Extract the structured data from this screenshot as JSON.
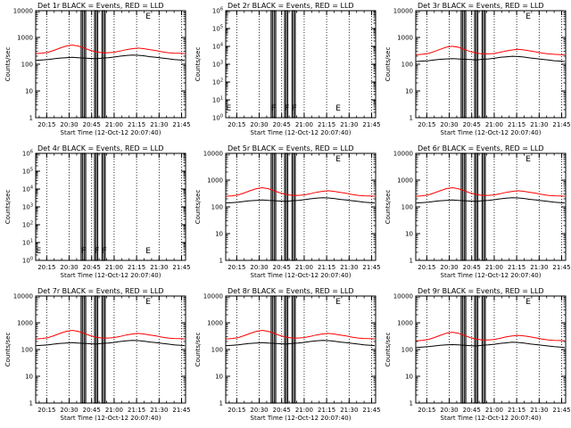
{
  "figure": {
    "colors": {
      "events": "#000000",
      "lld": "#ff0000",
      "background": "#ffffff"
    }
  },
  "chart_data": [
    {
      "type": "line",
      "title": "Det 1r BLACK = Events, RED = LLD",
      "xlabel": "Start Time (12-Oct-12 20:07:40)",
      "ylabel": "Counts/sec",
      "ylog": true,
      "ylim": [
        1,
        10000
      ],
      "yticks": [
        "1",
        "10",
        "100",
        "1000",
        "10000"
      ],
      "xticks": [
        "20:15",
        "20:30",
        "20:45",
        "21:00",
        "21:15",
        "21:30",
        "21:45"
      ],
      "xlim": [
        "20:07:40",
        "21:47:40"
      ],
      "flags": [
        {
          "label": "E",
          "time": "21:21"
        }
      ],
      "has_series": true
    },
    {
      "type": "line",
      "title": "Det 2r BLACK = Events, RED = LLD",
      "xlabel": "Start Time (12-Oct-12 20:07:40)",
      "ylabel": "Counts/sec",
      "ylog": true,
      "ylim": [
        1,
        1000000
      ],
      "yticks": [
        "10^0",
        "10^1",
        "10^2",
        "10^3",
        "10^4",
        "10^5",
        "10^6"
      ],
      "xticks": [
        "20:15",
        "20:30",
        "20:45",
        "21:00",
        "21:15",
        "21:30",
        "21:45"
      ],
      "xlim": [
        "20:07:40",
        "21:47:40"
      ],
      "flags": [
        {
          "label": "E",
          "time": "20:08"
        },
        {
          "label": "F",
          "time": "20:38"
        },
        {
          "label": "F",
          "time": "20:47"
        },
        {
          "label": "F",
          "time": "20:52"
        },
        {
          "label": "E",
          "time": "21:21"
        }
      ],
      "has_series": false
    },
    {
      "type": "line",
      "title": "Det 3r BLACK = Events, RED = LLD",
      "xlabel": "Start Time (12-Oct-12 20:07:40)",
      "ylabel": "Counts/sec",
      "ylog": true,
      "ylim": [
        1,
        10000
      ],
      "yticks": [
        "1",
        "10",
        "100",
        "1000",
        "10000"
      ],
      "xticks": [
        "20:15",
        "20:30",
        "20:45",
        "21:00",
        "21:15",
        "21:30",
        "21:45"
      ],
      "xlim": [
        "20:07:40",
        "21:47:40"
      ],
      "flags": [
        {
          "label": "E",
          "time": "21:21"
        }
      ],
      "has_series": true
    },
    {
      "type": "line",
      "title": "Det 4r BLACK = Events, RED = LLD",
      "xlabel": "Start Time (12-Oct-12 20:07:40)",
      "ylabel": "Counts/sec",
      "ylog": true,
      "ylim": [
        1,
        1000000
      ],
      "yticks": [
        "10^0",
        "10^1",
        "10^2",
        "10^3",
        "10^4",
        "10^5",
        "10^6"
      ],
      "xticks": [
        "20:15",
        "20:30",
        "20:45",
        "21:00",
        "21:15",
        "21:30",
        "21:45"
      ],
      "xlim": [
        "20:07:40",
        "21:47:40"
      ],
      "flags": [
        {
          "label": "E",
          "time": "20:08"
        },
        {
          "label": "F",
          "time": "20:38"
        },
        {
          "label": "F",
          "time": "20:47"
        },
        {
          "label": "F",
          "time": "20:52"
        },
        {
          "label": "E",
          "time": "21:21"
        }
      ],
      "has_series": false
    },
    {
      "type": "line",
      "title": "Det 5r BLACK = Events, RED = LLD",
      "xlabel": "Start Time (12-Oct-12 20:07:40)",
      "ylabel": "Counts/sec",
      "ylog": true,
      "ylim": [
        1,
        10000
      ],
      "yticks": [
        "1",
        "10",
        "100",
        "1000",
        "10000"
      ],
      "xticks": [
        "20:15",
        "20:30",
        "20:45",
        "21:00",
        "21:15",
        "21:30",
        "21:45"
      ],
      "xlim": [
        "20:07:40",
        "21:47:40"
      ],
      "flags": [
        {
          "label": "E",
          "time": "21:21"
        }
      ],
      "has_series": true
    },
    {
      "type": "line",
      "title": "Det 6r BLACK = Events, RED = LLD",
      "xlabel": "Start Time (12-Oct-12 20:07:40)",
      "ylabel": "Counts/sec",
      "ylog": true,
      "ylim": [
        1,
        10000
      ],
      "yticks": [
        "1",
        "10",
        "100",
        "1000",
        "10000"
      ],
      "xticks": [
        "20:15",
        "20:30",
        "20:45",
        "21:00",
        "21:15",
        "21:30",
        "21:45"
      ],
      "xlim": [
        "20:07:40",
        "21:47:40"
      ],
      "flags": [
        {
          "label": "E",
          "time": "21:21"
        }
      ],
      "has_series": true
    },
    {
      "type": "line",
      "title": "Det 7r BLACK = Events, RED = LLD",
      "xlabel": "Start Time (12-Oct-12 20:07:40)",
      "ylabel": "Counts/sec",
      "ylog": true,
      "ylim": [
        1,
        10000
      ],
      "yticks": [
        "1",
        "10",
        "100",
        "1000",
        "10000"
      ],
      "xticks": [
        "20:15",
        "20:30",
        "20:45",
        "21:00",
        "21:15",
        "21:30",
        "21:45"
      ],
      "xlim": [
        "20:07:40",
        "21:47:40"
      ],
      "flags": [
        {
          "label": "E",
          "time": "21:21"
        }
      ],
      "has_series": true
    },
    {
      "type": "line",
      "title": "Det 8r BLACK = Events, RED = LLD",
      "xlabel": "Start Time (12-Oct-12 20:07:40)",
      "ylabel": "Counts/sec",
      "ylog": true,
      "ylim": [
        1,
        10000
      ],
      "yticks": [
        "1",
        "10",
        "100",
        "1000",
        "10000"
      ],
      "xticks": [
        "20:15",
        "20:30",
        "20:45",
        "21:00",
        "21:15",
        "21:30",
        "21:45"
      ],
      "xlim": [
        "20:07:40",
        "21:47:40"
      ],
      "flags": [
        {
          "label": "E",
          "time": "21:21"
        }
      ],
      "has_series": true
    },
    {
      "type": "line",
      "title": "Det 9r BLACK = Events, RED = LLD",
      "xlabel": "Start Time (12-Oct-12 20:07:40)",
      "ylabel": "Counts/sec",
      "ylog": true,
      "ylim": [
        1,
        10000
      ],
      "yticks": [
        "1",
        "10",
        "100",
        "1000",
        "10000"
      ],
      "xticks": [
        "20:15",
        "20:30",
        "20:45",
        "21:00",
        "21:15",
        "21:30",
        "21:45"
      ],
      "xlim": [
        "20:07:40",
        "21:47:40"
      ],
      "flags": [
        {
          "label": "E",
          "time": "21:21"
        }
      ],
      "has_series": true
    }
  ],
  "shared_events": {
    "gaps": [
      {
        "start": "20:38",
        "end": "20:41"
      },
      {
        "start": "20:47",
        "end": "20:49"
      },
      {
        "start": "20:52",
        "end": "20:54"
      }
    ],
    "vertical_markers": [
      "20:39",
      "20:40",
      "20:48",
      "20:53"
    ],
    "series": [
      {
        "name": "Events",
        "color": "#000000",
        "times": [
          "20:08",
          "20:12",
          "20:16",
          "20:20",
          "20:24",
          "20:28",
          "20:32",
          "20:36",
          "20:40",
          "20:44",
          "20:48",
          "20:52",
          "20:56",
          "21:00",
          "21:04",
          "21:08",
          "21:12",
          "21:16",
          "21:20",
          "21:24",
          "21:28",
          "21:32",
          "21:36",
          "21:40",
          "21:44",
          "21:47"
        ],
        "values": [
          140,
          145,
          150,
          160,
          170,
          175,
          180,
          175,
          170,
          165,
          160,
          170,
          175,
          185,
          200,
          210,
          220,
          215,
          205,
          190,
          180,
          170,
          160,
          150,
          145,
          140
        ]
      },
      {
        "name": "LLD",
        "color": "#ff0000",
        "times": [
          "20:08",
          "20:12",
          "20:16",
          "20:20",
          "20:24",
          "20:28",
          "20:32",
          "20:36",
          "20:40",
          "20:44",
          "20:48",
          "20:52",
          "20:56",
          "21:00",
          "21:04",
          "21:08",
          "21:12",
          "21:16",
          "21:20",
          "21:24",
          "21:28",
          "21:32",
          "21:36",
          "21:40",
          "21:44",
          "21:47"
        ],
        "values": [
          250,
          260,
          280,
          330,
          400,
          480,
          520,
          480,
          400,
          330,
          290,
          270,
          270,
          280,
          310,
          350,
          380,
          400,
          380,
          350,
          320,
          290,
          270,
          260,
          255,
          250
        ]
      }
    ],
    "series_scale": [
      1.0,
      null,
      0.9,
      null,
      1.0,
      1.0,
      1.0,
      1.0,
      0.85
    ]
  }
}
